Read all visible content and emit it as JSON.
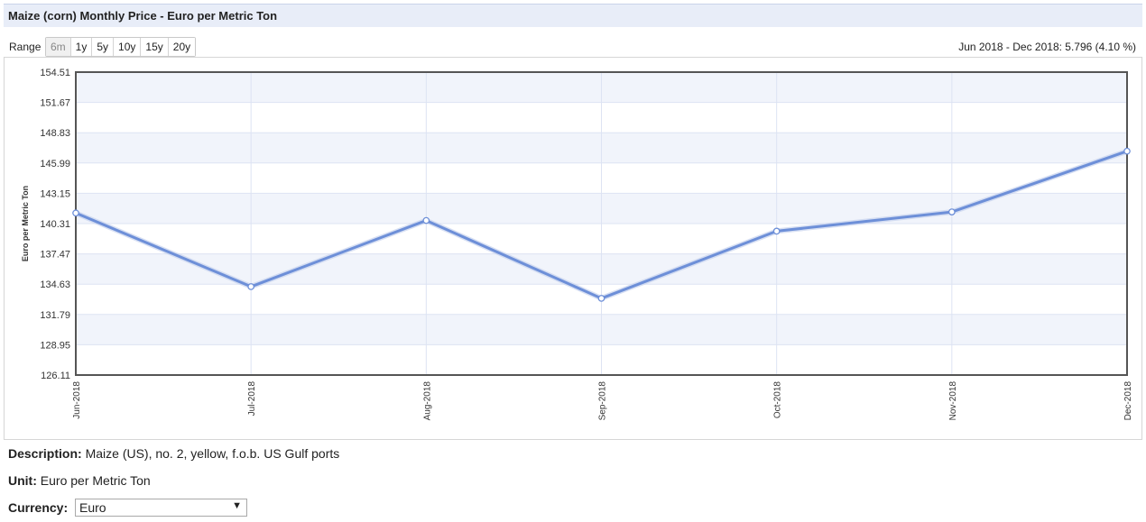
{
  "header": {
    "title": "Maize (corn) Monthly Price - Euro per Metric Ton"
  },
  "range": {
    "label": "Range",
    "buttons": [
      "6m",
      "1y",
      "5y",
      "10y",
      "15y",
      "20y"
    ],
    "active": "6m",
    "change_text": "Jun 2018 - Dec 2018: 5.796 (4.10 %)"
  },
  "chart_data": {
    "type": "line",
    "title": "",
    "xlabel": "",
    "ylabel": "Euro per Metric Ton",
    "categories": [
      "Jun-2018",
      "Jul-2018",
      "Aug-2018",
      "Sep-2018",
      "Oct-2018",
      "Nov-2018",
      "Dec-2018"
    ],
    "series": [
      {
        "values": [
          141.3,
          134.4,
          140.6,
          133.3,
          139.6,
          141.4,
          147.1
        ]
      }
    ],
    "yticks": [
      "126.11",
      "128.95",
      "131.79",
      "134.63",
      "137.47",
      "140.31",
      "143.15",
      "145.99",
      "148.83",
      "151.67",
      "154.51"
    ],
    "ylim": [
      126.11,
      154.51
    ],
    "grid": true,
    "line_color": "#6d8fd8"
  },
  "info": {
    "description_label": "Description:",
    "description_value": "Maize (US), no. 2, yellow, f.o.b. US Gulf ports",
    "unit_label": "Unit:",
    "unit_value": "Euro per Metric Ton",
    "currency_label": "Currency:",
    "currency_value": "Euro"
  }
}
